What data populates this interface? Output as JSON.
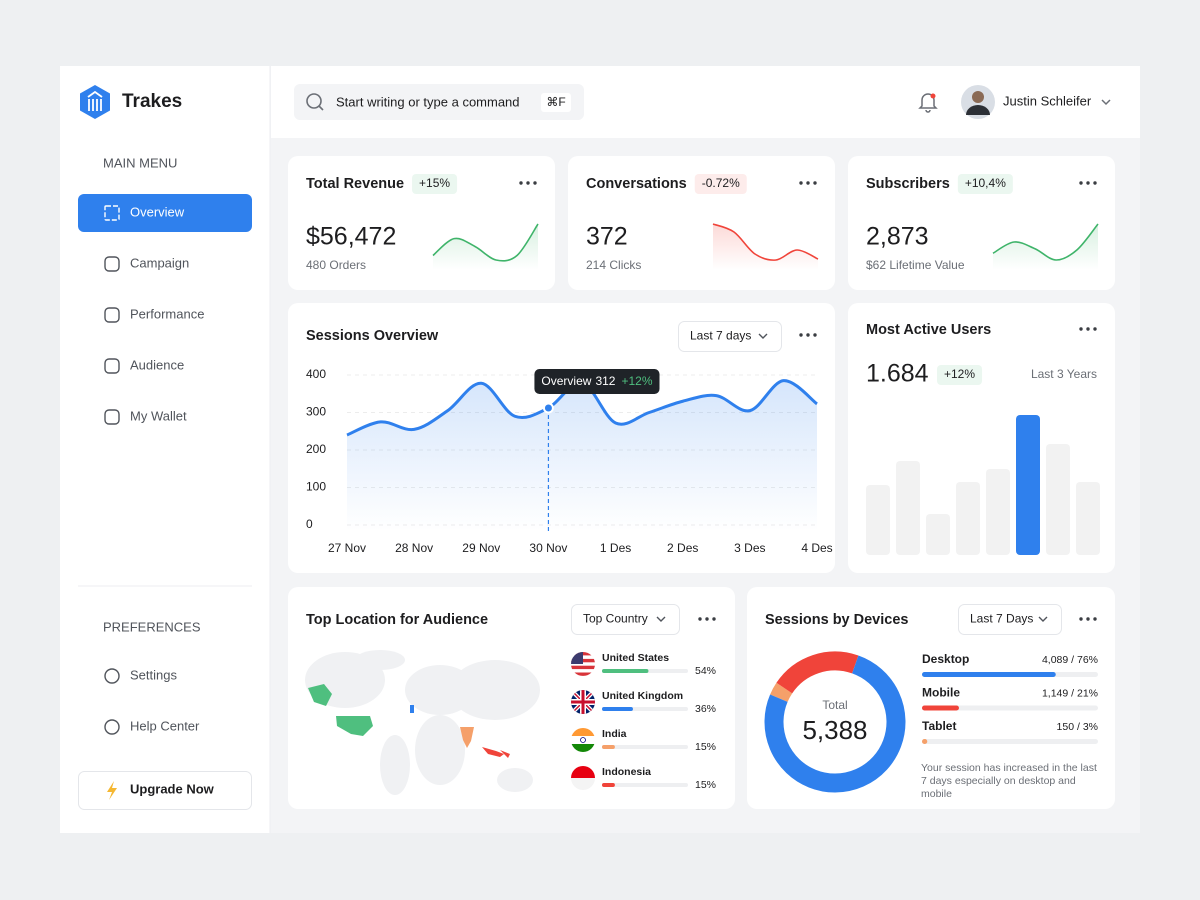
{
  "brand": "Trakes",
  "sidebar": {
    "main_menu_title": "MAIN MENU",
    "main_menu": [
      "Overview",
      "Campaign",
      "Performance",
      "Audience",
      "My Wallet"
    ],
    "active_item": 0,
    "preferences_title": "PREFERENCES",
    "preferences": [
      "Settings",
      "Help Center"
    ],
    "upgrade_button": "Upgrade Now"
  },
  "header": {
    "search_placeholder": "Start writing or type a command",
    "search_shortcut": "⌘F",
    "user_name": "Justin Schleifer"
  },
  "stats": [
    {
      "title": "Total Revenue",
      "change": "+15%",
      "value": "$56,472",
      "detail": "480 Orders",
      "color": "#3fb46a",
      "sparkline": [
        1,
        2.5,
        1.8,
        0.6,
        1,
        3.8
      ]
    },
    {
      "title": "Conversations",
      "change": "-0.72%",
      "value": "372",
      "detail": "214 Clicks",
      "color": "#f0443a",
      "sparkline": [
        4,
        3.2,
        1,
        0.4,
        1.4,
        0.5
      ]
    },
    {
      "title": "Subscribers",
      "change": "+10,4%",
      "value": "2,873",
      "detail": "$62 Lifetime Value",
      "color": "#3fb46a",
      "sparkline": [
        1.2,
        2.2,
        1.6,
        0.6,
        1.5,
        3.8
      ]
    }
  ],
  "sessions": {
    "title": "Sessions Overview",
    "filter": "Last 7 days",
    "x": [
      0,
      0.5,
      1,
      1.5,
      2,
      2.5,
      3,
      3.5,
      4,
      4.5,
      5,
      5.5,
      6,
      6.5,
      7
    ],
    "values": [
      240,
      275,
      255,
      305,
      378,
      290,
      312,
      380,
      272,
      300,
      330,
      345,
      305,
      385,
      323
    ],
    "xlim": [
      0,
      7
    ],
    "ylim": [
      0,
      400
    ],
    "yticks": [
      0,
      100,
      200,
      300,
      400
    ],
    "xticks": [
      {
        "value": 0,
        "label": "27 Nov"
      },
      {
        "value": 1,
        "label": "28 Nov"
      },
      {
        "value": 2,
        "label": "29 Nov"
      },
      {
        "value": 3,
        "label": "30 Nov"
      },
      {
        "value": 4,
        "label": "1 Des"
      },
      {
        "value": 5,
        "label": "2 Des"
      },
      {
        "value": 6,
        "label": "3 Des"
      },
      {
        "value": 7,
        "label": "4 Des"
      }
    ],
    "color": "#2f80ed",
    "grid": true,
    "tooltip": {
      "index": 6,
      "label": "Overview",
      "change": "+12%"
    }
  },
  "active_users": {
    "title": "Most Active Users",
    "value": "1.684",
    "change": "+12%",
    "period": "Last 3 Years",
    "values": [
      70,
      94,
      41,
      73,
      86,
      140,
      111,
      73
    ],
    "highlight_index": 5,
    "color": "#2f80ed",
    "bar_color": "#f2f2f2"
  },
  "locations": {
    "title": "Top Location for Audience",
    "filter": "Top Country",
    "names": [
      "United States",
      "United Kingdom",
      "India",
      "Indonesia"
    ],
    "values": [
      54,
      36,
      15,
      15
    ],
    "value_labels": [
      "54%",
      "36%",
      "15%",
      "15%"
    ],
    "colors": [
      "#4fbf7f",
      "#2f80ed",
      "#f5a06a",
      "#f0443a"
    ]
  },
  "devices": {
    "title": "Sessions by Devices",
    "filter": "Last 7 Days",
    "total_label": "Total",
    "total": "5,388",
    "names": [
      "Desktop",
      "Mobile",
      "Tablet"
    ],
    "values": [
      4089,
      1149,
      150
    ],
    "shares": [
      76,
      21,
      3
    ],
    "value_labels": [
      "4,089 / 76%",
      "1,149 / 21%",
      "150 / 3%"
    ],
    "colors": [
      "#2f80ed",
      "#f0443a",
      "#f5a06a"
    ],
    "note": "Your session has increased in the last 7 days especially on desktop and mobile"
  }
}
